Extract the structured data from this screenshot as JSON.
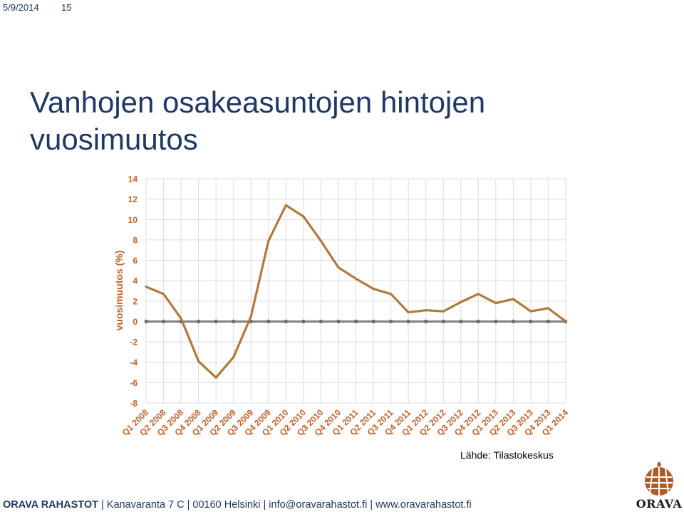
{
  "header": {
    "date": "5/9/2014",
    "page_number": "15"
  },
  "slide": {
    "title": "Vanhojen osakeasuntojen hintojen vuosimuutos",
    "source": "Lähde: Tilastokeskus"
  },
  "footer": {
    "brand": "ORAVA RAHASTOT",
    "address": "Kanavaranta 7 C",
    "city": "00160 Helsinki",
    "email": "info@oravarahastot.fi",
    "website": "www.oravarahastot.fi",
    "logo_text": "ORAVA"
  },
  "colors": {
    "title": "#1f3864",
    "series": "#b07a3c",
    "axis_label": "#c0632b",
    "zero_line": "#808080",
    "logo": "#b05a2a"
  },
  "chart_data": {
    "type": "line",
    "title": "",
    "xlabel": "",
    "ylabel": "vuosimuutos (%)",
    "ylim": [
      -8,
      14
    ],
    "yticks": [
      14,
      12,
      10,
      8,
      6,
      4,
      2,
      0,
      -2,
      -4,
      -6,
      -8
    ],
    "grid": true,
    "legend": "none",
    "categories": [
      "Q1 2008",
      "Q2 2008",
      "Q3 2008",
      "Q4 2008",
      "Q1 2009",
      "Q2 2009",
      "Q3 2009",
      "Q4 2009",
      "Q1 2010",
      "Q2 2010",
      "Q3 2010",
      "Q4 2010",
      "Q1 2011",
      "Q2 2011",
      "Q3 2011",
      "Q4 2011",
      "Q1 2012",
      "Q2 2012",
      "Q3 2012",
      "Q4 2012",
      "Q1 2013",
      "Q2 2013",
      "Q3 2013",
      "Q4 2013",
      "Q1 2014"
    ],
    "values": [
      3.4,
      2.7,
      0.3,
      -3.9,
      -5.5,
      -3.5,
      0.5,
      7.9,
      11.4,
      10.3,
      7.9,
      5.3,
      4.2,
      3.2,
      2.7,
      0.9,
      1.1,
      1.0,
      1.9,
      2.7,
      1.8,
      2.2,
      1.0,
      1.3,
      0.0
    ]
  }
}
